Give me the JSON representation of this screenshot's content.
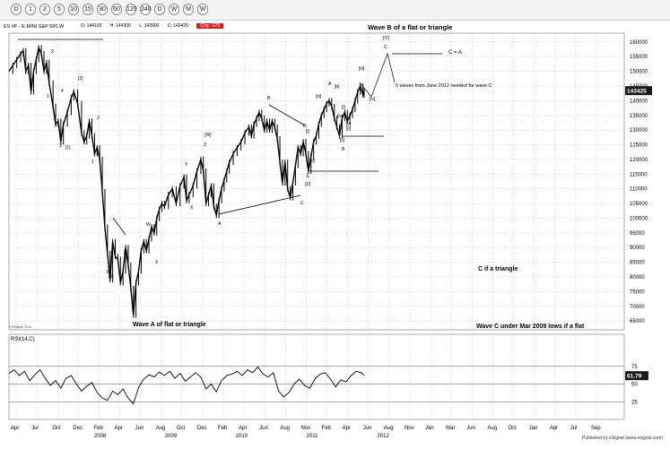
{
  "toolbar": {
    "timeframes": [
      "D",
      "1",
      "2",
      "5",
      "10",
      "15",
      "30",
      "60",
      "120",
      "240",
      "D",
      "W",
      "M",
      "W"
    ]
  },
  "symbol_line": {
    "symbol": "ES #F - E-MINI S&P 500,W",
    "open": "O: 144100",
    "high": "H: 144300",
    "low": "L: 142900",
    "close": "C: 143425",
    "change": "Chg: -675"
  },
  "copyright": "© eSignal, 2012",
  "publisher": "Published by eSignal (www.esignal.com)",
  "colors": {
    "price": "#000000",
    "grid": "#b0b0b0",
    "badge": "#1a1a1a",
    "rsi_line": "#000000"
  },
  "chart_data": [
    {
      "type": "line",
      "title": "ES #F - E-MINI S&P 500,W",
      "ylim": [
        62000,
        163000
      ],
      "y_ticks": [
        "160000",
        "155000",
        "150000",
        "145000",
        "140000",
        "135000",
        "130000",
        "125000",
        "120000",
        "115000",
        "110000",
        "105000",
        "100000",
        "95000",
        "90000",
        "85000",
        "80000",
        "75000",
        "70000",
        "65000"
      ],
      "last_value_label": "143425",
      "x_ticks": [
        "Apr",
        "Jul",
        "Oct",
        "Dec",
        "Feb",
        "Apr",
        "Jun",
        "Aug",
        "Oct",
        "Dec",
        "Feb",
        "Apr",
        "Jun",
        "Aug",
        "Nov",
        "Feb",
        "Apr",
        "Jun",
        "Aug",
        "Nov",
        "Jan",
        "Mar",
        "Jun",
        "Aug",
        "Oct",
        "Jan",
        "Apr",
        "Jul",
        "Sep"
      ],
      "x_years": [
        "2008",
        "2009",
        "2010",
        "2011",
        "2012"
      ],
      "series": [
        {
          "points": [
            [
              0,
              150000
            ],
            [
              3,
              152000
            ],
            [
              6,
              154000
            ],
            [
              9,
              156000
            ],
            [
              11,
              157000
            ],
            [
              13,
              150000
            ],
            [
              15,
              152000
            ],
            [
              17,
              143000
            ],
            [
              19,
              150000
            ],
            [
              21,
              154000
            ],
            [
              23,
              158000
            ],
            [
              25,
              156000
            ],
            [
              27,
              150000
            ],
            [
              29,
              153000
            ],
            [
              31,
              146000
            ],
            [
              34,
              138000
            ],
            [
              36,
              132000
            ],
            [
              38,
              133000
            ],
            [
              40,
              126000
            ],
            [
              42,
              132000
            ],
            [
              45,
              136000
            ],
            [
              48,
              141000
            ],
            [
              50,
              143000
            ],
            [
              53,
              139000
            ],
            [
              56,
              129000
            ],
            [
              58,
              126000
            ],
            [
              60,
              128000
            ],
            [
              62,
              133000
            ],
            [
              64,
              128000
            ],
            [
              66,
              122000
            ],
            [
              68,
              124000
            ],
            [
              70,
              120000
            ],
            [
              72,
              109000
            ],
            [
              74,
              97000
            ],
            [
              76,
              88000
            ],
            [
              78,
              79000
            ],
            [
              80,
              92000
            ],
            [
              82,
              87000
            ],
            [
              84,
              86000
            ],
            [
              86,
              78000
            ],
            [
              88,
              82000
            ],
            [
              90,
              90000
            ],
            [
              92,
              84000
            ],
            [
              94,
              76000
            ],
            [
              96,
              67000
            ],
            [
              98,
              78000
            ],
            [
              100,
              82000
            ],
            [
              102,
              89000
            ],
            [
              104,
              92000
            ],
            [
              106,
              89000
            ],
            [
              108,
              93000
            ],
            [
              110,
              97000
            ],
            [
              112,
              95000
            ],
            [
              114,
              100000
            ],
            [
              116,
              103000
            ],
            [
              118,
              105000
            ],
            [
              120,
              104000
            ],
            [
              123,
              108000
            ],
            [
              126,
              110000
            ],
            [
              129,
              105000
            ],
            [
              132,
              111000
            ],
            [
              135,
              114000
            ],
            [
              137,
              106000
            ],
            [
              139,
              108000
            ],
            [
              142,
              111000
            ],
            [
              145,
              116000
            ],
            [
              148,
              120000
            ],
            [
              150,
              116000
            ],
            [
              152,
              105000
            ],
            [
              154,
              108000
            ],
            [
              156,
              111000
            ],
            [
              158,
              104000
            ],
            [
              160,
              101000
            ],
            [
              162,
              106000
            ],
            [
              164,
              110000
            ],
            [
              166,
              113000
            ],
            [
              168,
              116000
            ],
            [
              170,
              119000
            ],
            [
              173,
              122000
            ],
            [
              176,
              124000
            ],
            [
              179,
              126000
            ],
            [
              182,
              129000
            ],
            [
              185,
              131000
            ],
            [
              187,
              128000
            ],
            [
              189,
              132000
            ],
            [
              191,
              134000
            ],
            [
              193,
              136000
            ],
            [
              195,
              134000
            ],
            [
              197,
              130000
            ],
            [
              199,
              133000
            ],
            [
              201,
              130000
            ],
            [
              203,
              133000
            ],
            [
              205,
              131000
            ],
            [
              207,
              127000
            ],
            [
              209,
              119000
            ],
            [
              211,
              112000
            ],
            [
              213,
              119000
            ],
            [
              215,
              110000
            ],
            [
              217,
              107000
            ],
            [
              219,
              112000
            ],
            [
              221,
              118000
            ],
            [
              223,
              124000
            ],
            [
              225,
              122000
            ],
            [
              227,
              126000
            ],
            [
              229,
              122000
            ],
            [
              231,
              116000
            ],
            [
              233,
              121000
            ],
            [
              235,
              126000
            ],
            [
              237,
              128000
            ],
            [
              239,
              132000
            ],
            [
              241,
              135000
            ],
            [
              243,
              137000
            ],
            [
              245,
              139000
            ],
            [
              247,
              140000
            ],
            [
              249,
              138000
            ],
            [
              251,
              134000
            ],
            [
              253,
              131000
            ],
            [
              255,
              128000
            ],
            [
              257,
              134000
            ],
            [
              259,
              136000
            ],
            [
              261,
              133000
            ],
            [
              263,
              135000
            ],
            [
              265,
              137000
            ],
            [
              267,
              140000
            ],
            [
              269,
              143000
            ],
            [
              271,
              145000
            ],
            [
              273,
              142000
            ],
            [
              274,
              143425
            ]
          ]
        }
      ],
      "badges": [
        "5 waves from June 2012 needed for wave C"
      ],
      "annotations": [
        "Wave B of a flat or triangle",
        "C = A",
        "5 waves from June 2012 needed for wave C",
        "C if a triangle",
        "Wave C under Mar 2009 lows if a flat",
        "Wave A of flat or triangle",
        "[Y]",
        "C",
        "[iii]",
        "[iv]",
        "A",
        "[b]",
        "[iii]",
        "[i]",
        "[v]",
        "[iv]",
        "[ii]",
        "[c]",
        "B",
        "B",
        "D",
        "[i]",
        "[iii]",
        "E",
        "[X]",
        "C",
        "[W]",
        "Z",
        "Y",
        "X",
        "A",
        "W",
        "X",
        "[4]",
        "3",
        "[3]",
        "[2]",
        "1",
        "2",
        "3",
        "[1]",
        "4",
        "1",
        "2"
      ],
      "rsi": {
        "label": "RSI(14,C)",
        "ylim": [
          0,
          100
        ],
        "y_ticks": [
          "75",
          "50",
          "25"
        ],
        "last_value_label": "61.79",
        "points": [
          [
            0,
            65
          ],
          [
            4,
            70
          ],
          [
            8,
            62
          ],
          [
            12,
            68
          ],
          [
            16,
            55
          ],
          [
            20,
            63
          ],
          [
            24,
            70
          ],
          [
            28,
            58
          ],
          [
            32,
            48
          ],
          [
            36,
            55
          ],
          [
            40,
            44
          ],
          [
            44,
            58
          ],
          [
            48,
            62
          ],
          [
            52,
            50
          ],
          [
            56,
            40
          ],
          [
            60,
            47
          ],
          [
            64,
            52
          ],
          [
            68,
            38
          ],
          [
            72,
            30
          ],
          [
            76,
            27
          ],
          [
            80,
            40
          ],
          [
            84,
            35
          ],
          [
            88,
            43
          ],
          [
            92,
            30
          ],
          [
            96,
            22
          ],
          [
            100,
            45
          ],
          [
            104,
            57
          ],
          [
            108,
            63
          ],
          [
            112,
            60
          ],
          [
            116,
            67
          ],
          [
            120,
            62
          ],
          [
            124,
            68
          ],
          [
            128,
            58
          ],
          [
            132,
            65
          ],
          [
            136,
            54
          ],
          [
            140,
            60
          ],
          [
            144,
            66
          ],
          [
            148,
            60
          ],
          [
            152,
            43
          ],
          [
            156,
            50
          ],
          [
            160,
            39
          ],
          [
            164,
            55
          ],
          [
            168,
            62
          ],
          [
            172,
            64
          ],
          [
            176,
            68
          ],
          [
            180,
            62
          ],
          [
            184,
            70
          ],
          [
            188,
            66
          ],
          [
            192,
            74
          ],
          [
            196,
            64
          ],
          [
            200,
            60
          ],
          [
            204,
            66
          ],
          [
            208,
            40
          ],
          [
            212,
            32
          ],
          [
            216,
            38
          ],
          [
            220,
            50
          ],
          [
            224,
            57
          ],
          [
            228,
            48
          ],
          [
            232,
            44
          ],
          [
            236,
            57
          ],
          [
            240,
            64
          ],
          [
            244,
            66
          ],
          [
            248,
            57
          ],
          [
            252,
            46
          ],
          [
            256,
            56
          ],
          [
            260,
            53
          ],
          [
            264,
            62
          ],
          [
            268,
            68
          ],
          [
            272,
            66
          ],
          [
            274,
            61.79
          ]
        ]
      }
    }
  ]
}
